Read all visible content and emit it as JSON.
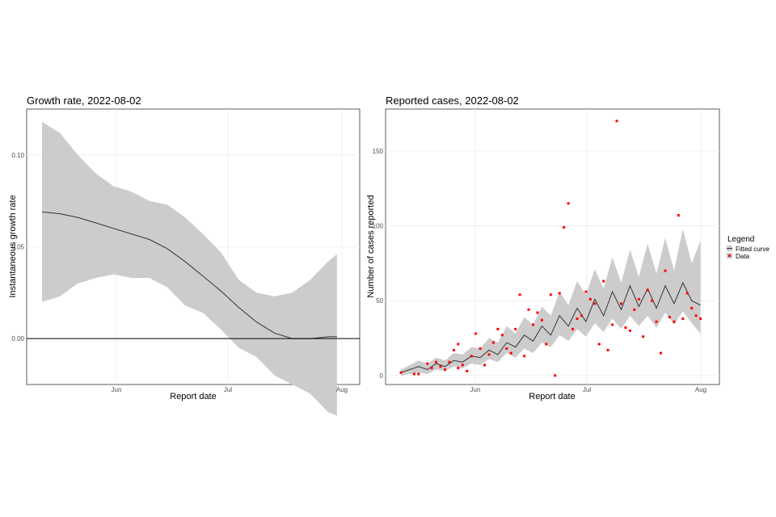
{
  "chart_data": [
    {
      "type": "line",
      "title": "Growth rate, 2022-08-02",
      "xlabel": "Report date",
      "ylabel": "Instantaneous growth rate",
      "x_ticks": [
        "Jun",
        "Jul",
        "Aug"
      ],
      "y_ticks": [
        "0.00",
        "0.05",
        "0.10"
      ],
      "xlim_days": [
        0,
        68
      ],
      "ylim": [
        -0.025,
        0.125
      ],
      "grid": true,
      "reference_line": 0.0,
      "series": [
        {
          "x": [
            0,
            4,
            8,
            12,
            16,
            20,
            24,
            28,
            32,
            36,
            40,
            44,
            48,
            52,
            56,
            60,
            64,
            66
          ],
          "median": [
            0.069,
            0.068,
            0.066,
            0.063,
            0.06,
            0.057,
            0.054,
            0.049,
            0.042,
            0.034,
            0.026,
            0.017,
            0.009,
            0.003,
            0.0,
            0.0,
            0.001,
            0.001
          ],
          "lower": [
            0.02,
            0.023,
            0.03,
            0.033,
            0.035,
            0.033,
            0.033,
            0.028,
            0.018,
            0.014,
            0.005,
            -0.005,
            -0.01,
            -0.02,
            -0.025,
            -0.03,
            -0.04,
            -0.042
          ],
          "upper": [
            0.118,
            0.112,
            0.1,
            0.09,
            0.083,
            0.08,
            0.075,
            0.073,
            0.066,
            0.057,
            0.047,
            0.032,
            0.025,
            0.023,
            0.025,
            0.032,
            0.042,
            0.046
          ]
        }
      ]
    },
    {
      "type": "line",
      "title": "Reported cases, 2022-08-02",
      "xlabel": "Report date",
      "ylabel": "Number of cases reported",
      "x_ticks": [
        "Jun",
        "Jul",
        "Aug"
      ],
      "y_ticks": [
        "0",
        "50",
        "100",
        "150"
      ],
      "xlim_days": [
        0,
        69
      ],
      "ylim": [
        -6,
        178
      ],
      "grid": true,
      "legend": {
        "title": "Legend",
        "entries": [
          "Fitted curve",
          "Data"
        ],
        "position": "right"
      },
      "fitted": {
        "x": [
          0,
          2,
          4,
          6,
          8,
          10,
          12,
          14,
          16,
          18,
          20,
          22,
          24,
          26,
          28,
          30,
          32,
          34,
          36,
          38,
          40,
          42,
          44,
          46,
          48,
          50,
          52,
          54,
          56,
          58,
          60,
          62,
          64,
          66,
          68
        ],
        "median": [
          2,
          4,
          6,
          4,
          8,
          6,
          10,
          9,
          13,
          12,
          17,
          14,
          22,
          19,
          27,
          23,
          33,
          27,
          40,
          33,
          45,
          36,
          51,
          40,
          56,
          44,
          60,
          46,
          58,
          45,
          60,
          48,
          62,
          50,
          47
        ],
        "lower": [
          0,
          1,
          2,
          1,
          4,
          3,
          6,
          5,
          8,
          7,
          11,
          9,
          15,
          12,
          18,
          15,
          22,
          19,
          27,
          23,
          31,
          26,
          35,
          29,
          38,
          31,
          40,
          33,
          40,
          32,
          42,
          34,
          43,
          35,
          28
        ],
        "upper": [
          4,
          7,
          10,
          8,
          12,
          10,
          15,
          14,
          19,
          18,
          25,
          22,
          33,
          28,
          39,
          34,
          46,
          40,
          56,
          47,
          63,
          54,
          71,
          58,
          79,
          62,
          84,
          66,
          88,
          68,
          92,
          70,
          98,
          75,
          90
        ]
      },
      "points": {
        "x": [
          0,
          3,
          4,
          6,
          7,
          8,
          9,
          10,
          11,
          12,
          13,
          13,
          14,
          15,
          16,
          17,
          18,
          19,
          20,
          21,
          22,
          23,
          24,
          25,
          26,
          27,
          28,
          29,
          30,
          31,
          32,
          33,
          34,
          35,
          36,
          37,
          38,
          39,
          40,
          41,
          42,
          43,
          44,
          45,
          46,
          47,
          48,
          49,
          50,
          51,
          52,
          53,
          54,
          55,
          56,
          57,
          58,
          59,
          60,
          61,
          62,
          63,
          64,
          65,
          66,
          67,
          68
        ],
        "y": [
          2,
          1,
          1,
          8,
          5,
          9,
          6,
          4,
          9,
          17,
          5,
          21,
          7,
          3,
          13,
          28,
          18,
          7,
          14,
          22,
          31,
          27,
          18,
          15,
          31,
          54,
          13,
          44,
          34,
          42,
          37,
          21,
          54,
          0,
          55,
          99,
          115,
          31,
          38,
          40,
          56,
          51,
          48,
          21,
          63,
          17,
          34,
          170,
          48,
          32,
          30,
          44,
          51,
          26,
          57,
          50,
          36,
          15,
          70,
          39,
          36,
          107,
          38,
          55,
          45,
          40,
          38
        ]
      }
    }
  ]
}
